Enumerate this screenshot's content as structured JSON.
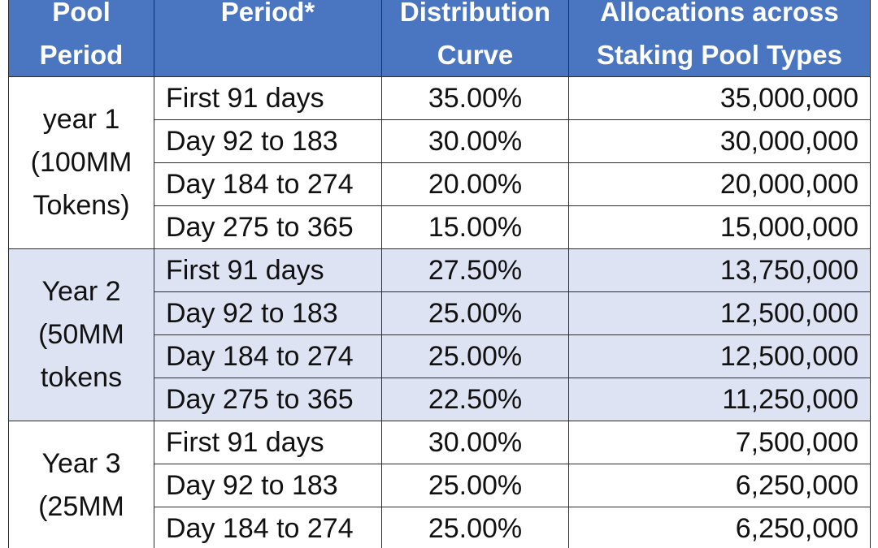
{
  "headers": {
    "pool_period_line1": "Pool",
    "pool_period_line2": "Period",
    "period": "Period*",
    "curve_line1": "Distribution",
    "curve_line2": "Curve",
    "alloc_line1": "Allocations across",
    "alloc_line2": "Staking Pool Types"
  },
  "groups": [
    {
      "label_lines": [
        "year 1",
        "(100MM",
        "Tokens)"
      ],
      "shaded": false,
      "rows": [
        {
          "period": "First 91 days",
          "curve": "35.00%",
          "allocation": "35,000,000"
        },
        {
          "period": "Day 92 to 183",
          "curve": "30.00%",
          "allocation": "30,000,000"
        },
        {
          "period": "Day 184 to 274",
          "curve": "20.00%",
          "allocation": "20,000,000"
        },
        {
          "period": "Day 275 to 365",
          "curve": "15.00%",
          "allocation": "15,000,000"
        }
      ]
    },
    {
      "label_lines": [
        "Year 2",
        "(50MM",
        "tokens"
      ],
      "shaded": true,
      "rows": [
        {
          "period": "First 91 days",
          "curve": "27.50%",
          "allocation": "13,750,000"
        },
        {
          "period": "Day 92 to 183",
          "curve": "25.00%",
          "allocation": "12,500,000"
        },
        {
          "period": "Day 184 to 274",
          "curve": "25.00%",
          "allocation": "12,500,000"
        },
        {
          "period": "Day 275 to 365",
          "curve": "22.50%",
          "allocation": "11,250,000"
        }
      ]
    },
    {
      "label_lines": [
        "Year 3",
        "(25MM"
      ],
      "shaded": false,
      "rows": [
        {
          "period": "First 91 days",
          "curve": "30.00%",
          "allocation": "7,500,000"
        },
        {
          "period": "Day 92 to 183",
          "curve": "25.00%",
          "allocation": "6,250,000"
        },
        {
          "period": "Day 184 to 274",
          "curve": "25.00%",
          "allocation": "6,250,000"
        }
      ]
    }
  ],
  "colors": {
    "header_bg": "#4a76c1",
    "header_text": "#ffffff",
    "shaded_row_bg": "#dde3f2",
    "border": "#2c2c2c"
  }
}
